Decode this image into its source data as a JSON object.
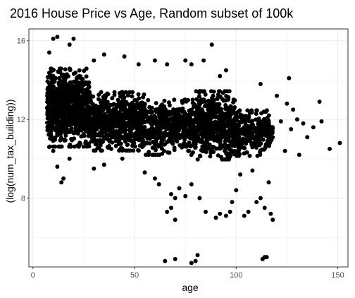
{
  "chart_data": {
    "type": "scatter",
    "title": "2016 House Price vs Age, Random subset of 100k",
    "xlabel": "age",
    "ylabel": "(log(num_tax_building))",
    "xlim": [
      -2,
      155
    ],
    "ylim": [
      4.5,
      16.6
    ],
    "xticks": [
      0,
      50,
      100,
      150
    ],
    "yticks": [
      8,
      12,
      16
    ],
    "grid": true,
    "theme": "black-and-white panel border",
    "point_color": "#000000",
    "dense_bands": [
      {
        "x": [
          7,
          28
        ],
        "y_center": 12.6,
        "y_spread": 1.2,
        "count": 850
      },
      {
        "x": [
          28,
          55
        ],
        "y_center": 11.9,
        "y_spread": 0.9,
        "count": 650
      },
      {
        "x": [
          55,
          80
        ],
        "y_center": 11.6,
        "y_spread": 0.85,
        "count": 480
      },
      {
        "x": [
          80,
          100
        ],
        "y_center": 11.7,
        "y_spread": 1.05,
        "count": 520
      },
      {
        "x": [
          100,
          118
        ],
        "y_center": 11.3,
        "y_spread": 0.7,
        "count": 300
      }
    ],
    "points": [
      {
        "x": 10,
        "y": 16.1
      },
      {
        "x": 12,
        "y": 16.2
      },
      {
        "x": 20,
        "y": 16.1
      },
      {
        "x": 18,
        "y": 15.8
      },
      {
        "x": 8,
        "y": 15.4
      },
      {
        "x": 30,
        "y": 15.0
      },
      {
        "x": 35,
        "y": 15.3
      },
      {
        "x": 45,
        "y": 15.2
      },
      {
        "x": 52,
        "y": 14.8
      },
      {
        "x": 60,
        "y": 15.0
      },
      {
        "x": 66,
        "y": 14.8
      },
      {
        "x": 75,
        "y": 15.0
      },
      {
        "x": 88,
        "y": 15.8
      },
      {
        "x": 78,
        "y": 14.8
      },
      {
        "x": 84,
        "y": 15.0
      },
      {
        "x": 92,
        "y": 14.2
      },
      {
        "x": 95,
        "y": 14.5
      },
      {
        "x": 112,
        "y": 13.8
      },
      {
        "x": 120,
        "y": 13.2
      },
      {
        "x": 126,
        "y": 14.1
      },
      {
        "x": 125,
        "y": 12.8
      },
      {
        "x": 128,
        "y": 12.5
      },
      {
        "x": 130,
        "y": 12.0
      },
      {
        "x": 133,
        "y": 11.8
      },
      {
        "x": 135,
        "y": 11.1
      },
      {
        "x": 138,
        "y": 11.6
      },
      {
        "x": 141,
        "y": 12.9
      },
      {
        "x": 142,
        "y": 11.9
      },
      {
        "x": 146,
        "y": 10.5
      },
      {
        "x": 151,
        "y": 10.8
      },
      {
        "x": 131,
        "y": 10.2
      },
      {
        "x": 127,
        "y": 11.5
      },
      {
        "x": 124,
        "y": 10.4
      },
      {
        "x": 122,
        "y": 11.9
      },
      {
        "x": 8,
        "y": 10.6
      },
      {
        "x": 10,
        "y": 10.4
      },
      {
        "x": 12,
        "y": 9.6
      },
      {
        "x": 14,
        "y": 8.8
      },
      {
        "x": 15,
        "y": 9.0
      },
      {
        "x": 18,
        "y": 10.0
      },
      {
        "x": 30,
        "y": 9.5
      },
      {
        "x": 35,
        "y": 9.7
      },
      {
        "x": 44,
        "y": 10.0
      },
      {
        "x": 55,
        "y": 9.3
      },
      {
        "x": 60,
        "y": 9.0
      },
      {
        "x": 62,
        "y": 8.7
      },
      {
        "x": 68,
        "y": 8.2
      },
      {
        "x": 70,
        "y": 8.0
      },
      {
        "x": 72,
        "y": 8.5
      },
      {
        "x": 66,
        "y": 7.3
      },
      {
        "x": 68,
        "y": 7.5
      },
      {
        "x": 70,
        "y": 6.9
      },
      {
        "x": 75,
        "y": 8.1
      },
      {
        "x": 78,
        "y": 8.7
      },
      {
        "x": 82,
        "y": 8.0
      },
      {
        "x": 85,
        "y": 7.3
      },
      {
        "x": 90,
        "y": 7.0
      },
      {
        "x": 92,
        "y": 7.2
      },
      {
        "x": 95,
        "y": 7.1
      },
      {
        "x": 97,
        "y": 7.3
      },
      {
        "x": 98,
        "y": 7.8
      },
      {
        "x": 100,
        "y": 8.4
      },
      {
        "x": 104,
        "y": 7.1
      },
      {
        "x": 106,
        "y": 7.3
      },
      {
        "x": 110,
        "y": 7.8
      },
      {
        "x": 114,
        "y": 7.5
      },
      {
        "x": 117,
        "y": 7.2
      },
      {
        "x": 118,
        "y": 6.9
      },
      {
        "x": 112,
        "y": 8.0
      },
      {
        "x": 116,
        "y": 8.8
      },
      {
        "x": 102,
        "y": 9.2
      },
      {
        "x": 108,
        "y": 9.4
      },
      {
        "x": 65,
        "y": 4.8
      },
      {
        "x": 70,
        "y": 4.9
      },
      {
        "x": 78,
        "y": 4.7
      },
      {
        "x": 80,
        "y": 4.8
      },
      {
        "x": 81,
        "y": 5.1
      },
      {
        "x": 113,
        "y": 4.9
      },
      {
        "x": 114,
        "y": 5.0
      },
      {
        "x": 115,
        "y": 5.0
      }
    ]
  }
}
